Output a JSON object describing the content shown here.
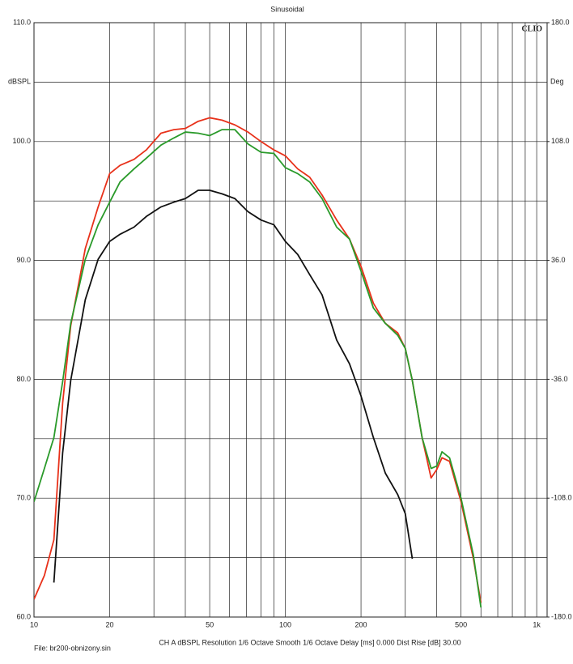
{
  "chart_data": {
    "type": "line",
    "title": "Sinusoidal",
    "brand": "CLIO",
    "y_label": "dBSPL",
    "y2_label": "Deg",
    "file_label": "File: br200-obnizony.sin",
    "settings_label": "CH A   dBSPL   Resolution 1/6 Octave   Smooth 1/6 Octave   Delay [ms] 0.000   Dist Rise [dB] 30.00",
    "log_x": true,
    "grid": true,
    "xlim": [
      10,
      1100
    ],
    "xticks": [
      10,
      20,
      50,
      100,
      200,
      500,
      {
        "value": 1000,
        "label": "1k"
      }
    ],
    "x_minor_ticks": [
      30,
      40,
      60,
      70,
      80,
      90,
      300,
      400,
      600,
      700,
      800,
      900
    ],
    "ylim": [
      60,
      110
    ],
    "yticks": [
      {
        "value": 60,
        "label": "60.0"
      },
      {
        "value": 70,
        "label": "70.0"
      },
      {
        "value": 80,
        "label": "80.0"
      },
      {
        "value": 90,
        "label": "90.0"
      },
      {
        "value": 100,
        "label": "100.0"
      },
      {
        "value": 110,
        "label": "110.0"
      }
    ],
    "y_minor_ticks": [
      65,
      75,
      85,
      95,
      105
    ],
    "y2lim": [
      -180,
      180
    ],
    "y2ticks": [
      {
        "value": -180,
        "label": "-180.0"
      },
      {
        "value": -108,
        "label": "-108.0"
      },
      {
        "value": -36,
        "label": "-36.0"
      },
      {
        "value": 36,
        "label": "36.0"
      },
      {
        "value": 108,
        "label": "108.0"
      },
      {
        "value": 180,
        "label": "180.0"
      }
    ],
    "x": [
      10,
      11,
      12,
      13,
      14,
      16,
      18,
      20,
      22,
      25,
      28,
      32,
      36,
      40,
      45,
      50,
      56,
      63,
      71,
      80,
      90,
      100,
      112,
      125,
      140,
      160,
      180,
      200,
      224,
      250,
      280,
      300,
      320,
      350,
      380,
      400,
      420,
      450,
      500,
      560,
      600
    ],
    "series": [
      {
        "color": "#e8311a",
        "values": [
          61.5,
          63.5,
          66.5,
          78,
          84.5,
          91,
          94.5,
          97.3,
          98,
          98.5,
          99.3,
          100.7,
          101,
          101.1,
          101.7,
          102,
          101.8,
          101.4,
          100.8,
          100,
          99.3,
          98.8,
          97.7,
          97,
          95.5,
          93.4,
          91.8,
          89.5,
          86.4,
          84.7,
          83.9,
          82.6,
          79.9,
          75.1,
          71.7,
          72.4,
          73.4,
          73.1,
          69.7,
          64.9,
          61.2
        ]
      },
      {
        "color": "#2a9a2a",
        "values": [
          69.7,
          72.5,
          75.1,
          79.8,
          84.7,
          90.1,
          93,
          94.9,
          96.6,
          97.7,
          98.6,
          99.7,
          100.3,
          100.8,
          100.7,
          100.5,
          101,
          101,
          99.8,
          99.1,
          99,
          97.8,
          97.3,
          96.6,
          95.2,
          92.8,
          91.8,
          89.1,
          86,
          84.7,
          83.7,
          82.6,
          79.9,
          75.1,
          72.5,
          72.7,
          73.9,
          73.4,
          70,
          65.2,
          60.8
        ]
      },
      {
        "color": "#111111",
        "values": [
          null,
          null,
          62.9,
          73.8,
          79.9,
          86.7,
          90.1,
          91.6,
          92.2,
          92.8,
          93.7,
          94.5,
          94.9,
          95.2,
          95.9,
          95.9,
          95.6,
          95.2,
          94.1,
          93.4,
          93,
          91.6,
          90.5,
          88.8,
          87.1,
          83.3,
          81.3,
          78.6,
          75.1,
          72.1,
          70.3,
          68.7,
          64.9,
          null,
          null,
          null,
          null,
          null,
          null,
          null,
          null
        ]
      }
    ]
  }
}
